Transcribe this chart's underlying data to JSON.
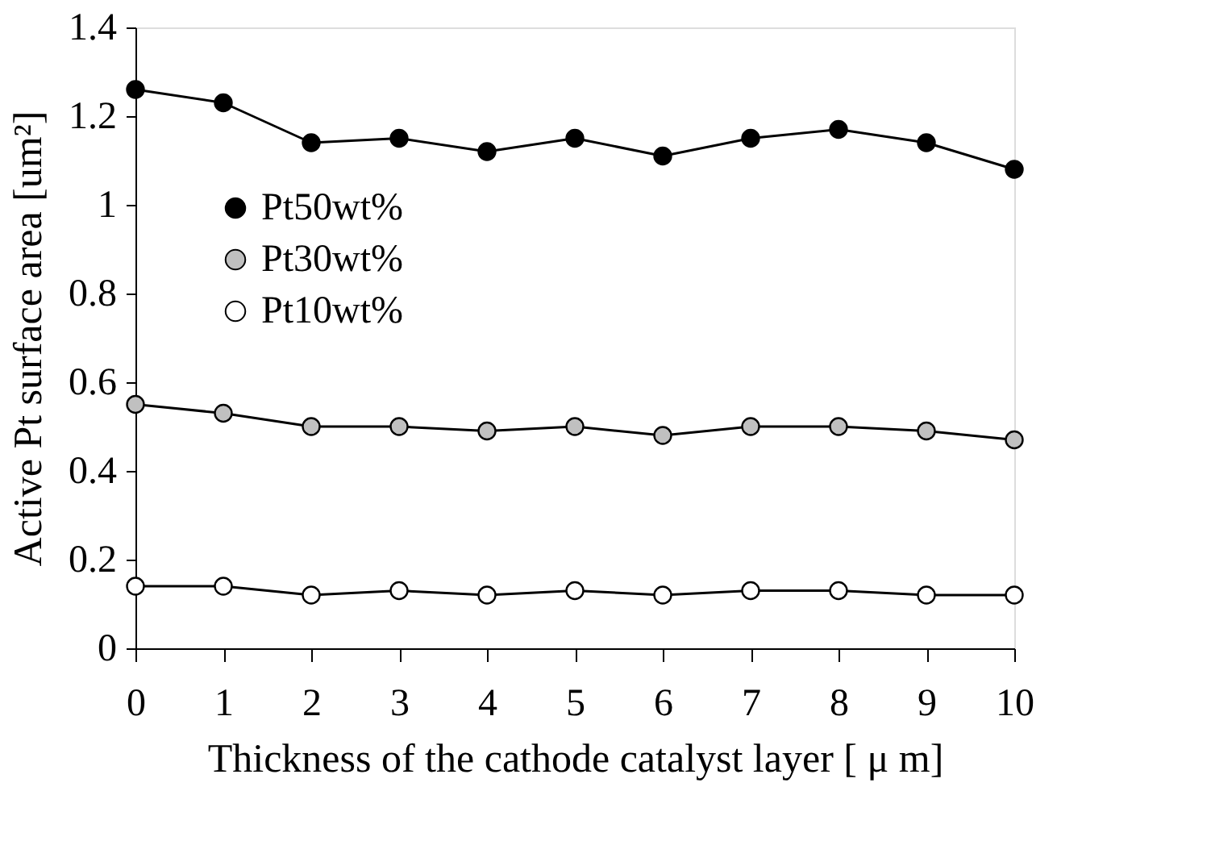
{
  "chart_data": {
    "type": "line",
    "xlabel": "Thickness of the cathode catalyst layer [ μ m]",
    "ylabel": "Active Pt surface area [um²]",
    "x": [
      0,
      1,
      2,
      3,
      4,
      5,
      6,
      7,
      8,
      9,
      10
    ],
    "series": [
      {
        "name": "Pt50wt%",
        "color": "#000000",
        "values": [
          1.26,
          1.23,
          1.14,
          1.15,
          1.12,
          1.15,
          1.11,
          1.15,
          1.17,
          1.14,
          1.08
        ]
      },
      {
        "name": "Pt30wt%",
        "color": "#c0c0c0",
        "values": [
          0.55,
          0.53,
          0.5,
          0.5,
          0.49,
          0.5,
          0.48,
          0.5,
          0.5,
          0.49,
          0.47
        ]
      },
      {
        "name": "Pt10wt%",
        "color": "#ffffff",
        "values": [
          0.14,
          0.14,
          0.12,
          0.13,
          0.12,
          0.13,
          0.12,
          0.13,
          0.13,
          0.12,
          0.12
        ]
      }
    ],
    "xlim": [
      0,
      10
    ],
    "xticks": [
      0,
      1,
      2,
      3,
      4,
      5,
      6,
      7,
      8,
      9,
      10
    ],
    "ylim": [
      0,
      1.4
    ],
    "yticks": [
      0,
      0.2,
      0.4,
      0.6,
      0.8,
      1,
      1.2,
      1.4
    ],
    "grid": false,
    "legend": "top left",
    "marker": "circle",
    "line_style": "solid"
  }
}
